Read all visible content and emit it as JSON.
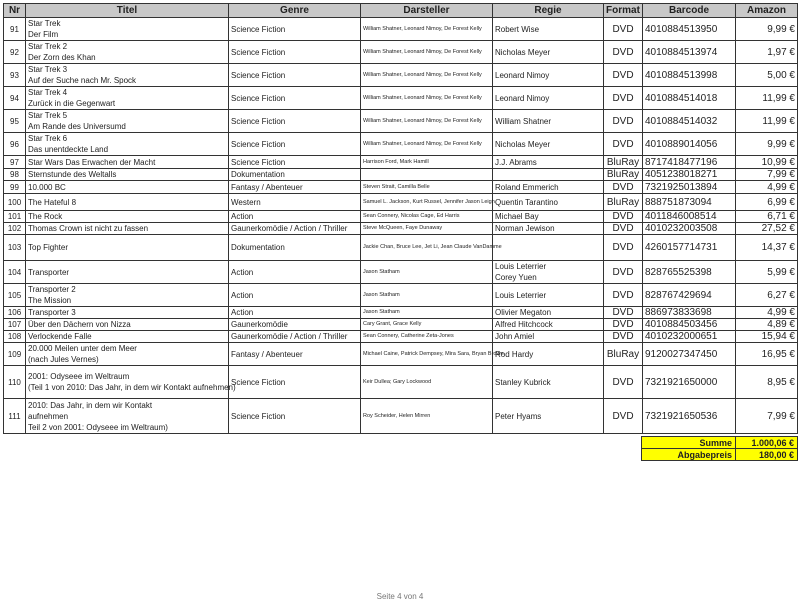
{
  "headers": [
    "Nr",
    "Titel",
    "Genre",
    "Darsteller",
    "Regie",
    "Format",
    "Barcode",
    "Amazon"
  ],
  "rows": [
    {
      "nr": "91",
      "titel": [
        "Star Trek",
        "Der Film"
      ],
      "genre": "Science Fiction",
      "darsteller": "William Shatner, Leonard Nimoy, De Forest Kelly",
      "regie": [
        "Robert Wise"
      ],
      "format": "DVD",
      "barcode": "4010884513950",
      "amazon": "9,99 €"
    },
    {
      "nr": "92",
      "titel": [
        "Star Trek 2",
        "Der Zorn des Khan"
      ],
      "genre": "Science Fiction",
      "darsteller": "William Shatner, Leonard Nimoy, De Forest Kelly",
      "regie": [
        "Nicholas Meyer"
      ],
      "format": "DVD",
      "barcode": "4010884513974",
      "amazon": "1,97 €"
    },
    {
      "nr": "93",
      "titel": [
        "Star Trek 3",
        "Auf der Suche nach Mr. Spock"
      ],
      "genre": "Science Fiction",
      "darsteller": "William Shatner, Leonard Nimoy, De Forest Kelly",
      "regie": [
        "Leonard Nimoy"
      ],
      "format": "DVD",
      "barcode": "4010884513998",
      "amazon": "5,00 €"
    },
    {
      "nr": "94",
      "titel": [
        "Star Trek 4",
        "Zurück in die Gegenwart"
      ],
      "genre": "Science Fiction",
      "darsteller": "William Shatner, Leonard Nimoy, De Forest Kelly",
      "regie": [
        "Leonard Nimoy"
      ],
      "format": "DVD",
      "barcode": "4010884514018",
      "amazon": "11,99 €"
    },
    {
      "nr": "95",
      "titel": [
        "Star Trek 5",
        "Am Rande des Universumd"
      ],
      "genre": "Science Fiction",
      "darsteller": "William Shatner, Leonard Nimoy, De Forest Kelly",
      "regie": [
        "William Shatner"
      ],
      "format": "DVD",
      "barcode": "4010884514032",
      "amazon": "11,99 €"
    },
    {
      "nr": "96",
      "titel": [
        "Star Trek 6",
        "Das unentdeckte Land"
      ],
      "genre": "Science Fiction",
      "darsteller": "William Shatner, Leonard Nimoy, De Forest Kelly",
      "regie": [
        "Nicholas Meyer"
      ],
      "format": "DVD",
      "barcode": "4010889014056",
      "amazon": "9,99 €"
    },
    {
      "nr": "97",
      "titel": [
        "Star Wars Das Erwachen der Macht"
      ],
      "genre": "Science Fiction",
      "darsteller": "Harrison Ford, Mark Hamill",
      "regie": [
        "J.J. Abrams"
      ],
      "format": "BluRay",
      "barcode": "8717418477196",
      "amazon": "10,99 €"
    },
    {
      "nr": "98",
      "titel": [
        "Sternstunde des Weltalls"
      ],
      "genre": "Dokumentation",
      "darsteller": "",
      "regie": [
        ""
      ],
      "format": "BluRay",
      "barcode": "4051238018271",
      "amazon": "7,99 €"
    },
    {
      "nr": "99",
      "titel": [
        "10.000 BC"
      ],
      "genre": "Fantasy / Abenteuer",
      "darsteller": "Steven Strait, Camilla Belle",
      "regie": [
        "Roland Emmerich"
      ],
      "format": "DVD",
      "barcode": "7321925013894",
      "amazon": "4,99 €"
    },
    {
      "nr": "100",
      "titel": [
        "The Hateful 8"
      ],
      "genre": "Western",
      "darsteller": "Samuel L. Jackson, Kurt Russel, Jennifer Jason Leigh",
      "regie": [
        "Quentin Tarantino"
      ],
      "format": "BluRay",
      "barcode": "888751873094",
      "amazon": "6,99 €"
    },
    {
      "nr": "101",
      "titel": [
        "The Rock"
      ],
      "genre": "Action",
      "darsteller": "Sean Connery, Nicolas Cage, Ed Harris",
      "regie": [
        "Michael Bay"
      ],
      "format": "DVD",
      "barcode": "4011846008514",
      "amazon": "6,71 €"
    },
    {
      "nr": "102",
      "titel": [
        "Thomas Crown ist nicht zu fassen"
      ],
      "genre": "Gaunerkomödie / Action / Thriller",
      "darsteller": "Steve McQueen, Faye Dunaway",
      "regie": [
        "Norman Jewison"
      ],
      "format": "DVD",
      "barcode": "4010232003508",
      "amazon": "27,52 €"
    },
    {
      "nr": "103",
      "titel": [
        "Top Fighter"
      ],
      "genre": "Dokumentation",
      "darsteller": "Jackie Chan, Bruce Lee, Jet Li, Jean Claude VanDamme",
      "regie": [
        ""
      ],
      "format": "DVD",
      "barcode": "4260157714731",
      "amazon": "14,37 €"
    },
    {
      "nr": "104",
      "titel": [
        "Transporter"
      ],
      "genre": "Action",
      "darsteller": "Jason Statham",
      "regie": [
        "Louis Leterrier",
        "Corey Yuen"
      ],
      "format": "DVD",
      "barcode": "828765525398",
      "amazon": "5,99 €"
    },
    {
      "nr": "105",
      "titel": [
        "Transporter 2",
        "The Mission"
      ],
      "genre": "Action",
      "darsteller": "Jason Statham",
      "regie": [
        "Louis Leterrier"
      ],
      "format": "DVD",
      "barcode": "828767429694",
      "amazon": "6,27 €"
    },
    {
      "nr": "106",
      "titel": [
        "Transporter 3"
      ],
      "genre": "Action",
      "darsteller": "Jason Statham",
      "regie": [
        "Olivier Megaton"
      ],
      "format": "DVD",
      "barcode": "886973833698",
      "amazon": "4,99 €"
    },
    {
      "nr": "107",
      "titel": [
        "Über den Dächern von Nizza"
      ],
      "genre": "Gaunerkomödie",
      "darsteller": "Cary Grant, Grace Kelly",
      "regie": [
        "Alfred Hitchcock"
      ],
      "format": "DVD",
      "barcode": "4010884503456",
      "amazon": "4,89 €"
    },
    {
      "nr": "108",
      "titel": [
        "Verlockende Falle"
      ],
      "genre": "Gaunerkomödie / Action / Thriller",
      "darsteller": "Sean Connery, Catherine Zeta-Jones",
      "regie": [
        "John Amiel"
      ],
      "format": "DVD",
      "barcode": "4010232000651",
      "amazon": "15,94 €"
    },
    {
      "nr": "109",
      "titel": [
        "20.000 Meilen unter dem Meer",
        "(nach Jules Vernes)"
      ],
      "genre": "Fantasy / Abenteuer",
      "darsteller": "Michael Caine, Patrick Dempsey, Mira Sara, Bryan Brown",
      "regie": [
        "Rod Hardy"
      ],
      "format": "BluRay",
      "barcode": "9120027347450",
      "amazon": "16,95 €"
    },
    {
      "nr": "110",
      "titel": [
        "2001: Odyseee im Weltraum",
        "(Teil 1 von 2010: Das Jahr, in dem wir Kontakt aufnehmen)"
      ],
      "genre": "Science Fiction",
      "darsteller": "Keir Dullea; Gary Lockwood",
      "regie": [
        "Stanley Kubrick"
      ],
      "format": "DVD",
      "barcode": "7321921650000",
      "amazon": "8,95 €"
    },
    {
      "nr": "111",
      "titel": [
        "2010: Das Jahr, in dem wir Kontakt",
        "aufnehmen",
        "Teil 2 von 2001: Odyseee im Weltraum)"
      ],
      "genre": "Science Fiction",
      "darsteller": "Roy Scheider, Helen Mirren",
      "regie": [
        "Peter Hyams"
      ],
      "format": "DVD",
      "barcode": "7321921650536",
      "amazon": "7,99 €"
    }
  ],
  "summary": {
    "summe_label": "Summe",
    "summe_value": "1.000,06 €",
    "abgabe_label": "Abgabepreis",
    "abgabe_value": "180,00 €",
    "highlight_color": "#ffff00"
  },
  "footer": "Seite 4 von 4"
}
